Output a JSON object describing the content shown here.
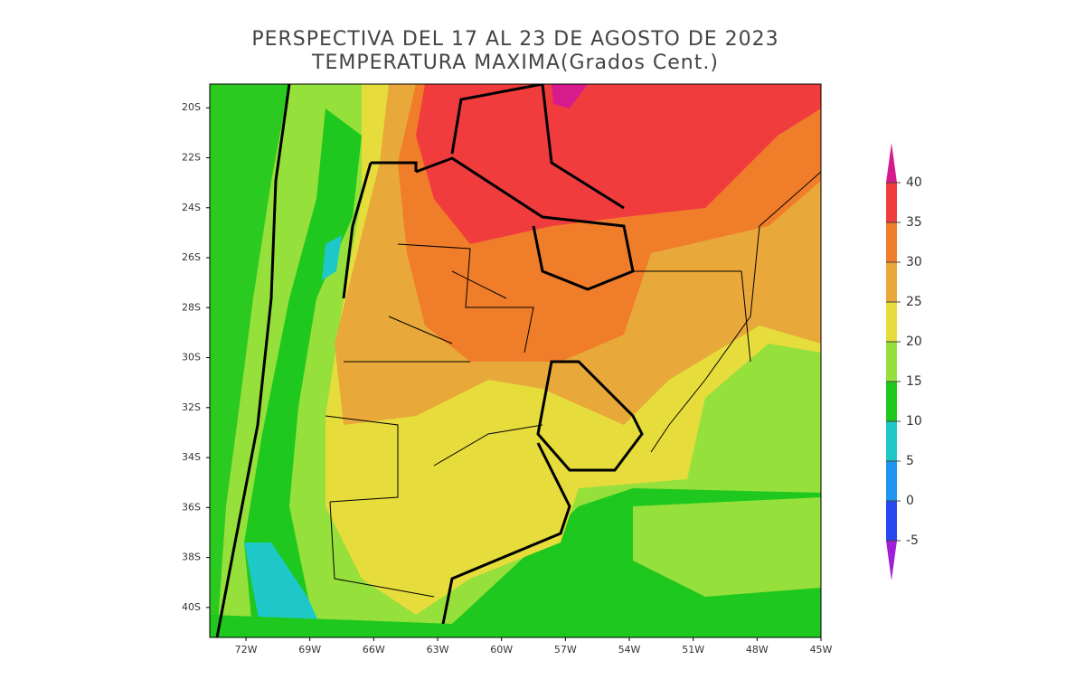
{
  "title": [
    "PERSPECTIVA DEL 17 AL 23 DE AGOSTO DE 2023",
    "TEMPERATURA MAXIMA(Grados Cent.)"
  ],
  "map": {
    "xlim": [
      -73.7,
      -45
    ],
    "ylim": [
      -41.2,
      -19.05
    ],
    "yticks": [
      {
        "value": -20,
        "label": "20S"
      },
      {
        "value": -22,
        "label": "22S"
      },
      {
        "value": -24,
        "label": "24S"
      },
      {
        "value": -26,
        "label": "26S"
      },
      {
        "value": -28,
        "label": "28S"
      },
      {
        "value": -30,
        "label": "30S"
      },
      {
        "value": -32,
        "label": "32S"
      },
      {
        "value": -34,
        "label": "34S"
      },
      {
        "value": -36,
        "label": "36S"
      },
      {
        "value": -38,
        "label": "38S"
      },
      {
        "value": -40,
        "label": "40S"
      }
    ],
    "xticks": [
      {
        "value": -72,
        "label": "72W"
      },
      {
        "value": -69,
        "label": "69W"
      },
      {
        "value": -66,
        "label": "66W"
      },
      {
        "value": -63,
        "label": "63W"
      },
      {
        "value": -60,
        "label": "60W"
      },
      {
        "value": -57,
        "label": "57W"
      },
      {
        "value": -54,
        "label": "54W"
      },
      {
        "value": -51,
        "label": "51W"
      },
      {
        "value": -48,
        "label": "48W"
      },
      {
        "value": -45,
        "label": "45W"
      }
    ]
  },
  "colorbar": {
    "levels": [
      -5,
      0,
      5,
      10,
      15,
      20,
      25,
      30,
      35,
      40
    ],
    "colors": [
      "#a01ed8",
      "#2846f0",
      "#1e96f0",
      "#1ec8c8",
      "#1ec81e",
      "#96e03c",
      "#e6dc3c",
      "#e8a83a",
      "#f07d2a",
      "#f03c3c",
      "#d81b8c"
    ]
  }
}
